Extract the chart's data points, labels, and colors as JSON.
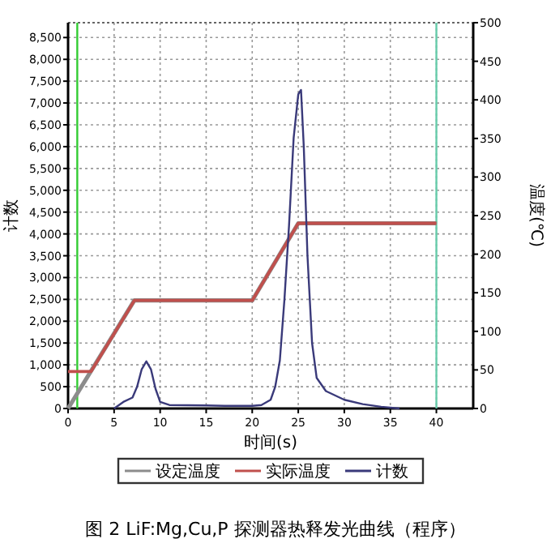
{
  "chart_data": {
    "type": "line",
    "title": "图 2 LiF:Mg,Cu,P 探测器热释发光曲线（程序）",
    "xlabel": "时间(s)",
    "ylabel": "计数",
    "y2label": "温度(℃)",
    "xlim": [
      0,
      44
    ],
    "xticks": [
      0,
      5,
      10,
      15,
      20,
      25,
      30,
      35,
      40
    ],
    "ylim": [
      0,
      8840
    ],
    "yticks": [
      0,
      {
        "value": 500,
        "label": "500"
      },
      {
        "value": 1000,
        "label": "1,000"
      },
      {
        "value": 1500,
        "label": "1,500"
      },
      {
        "value": 2000,
        "label": "2,000"
      },
      {
        "value": 2500,
        "label": "2,500"
      },
      {
        "value": 3000,
        "label": "3,000"
      },
      {
        "value": 3500,
        "label": "3,500"
      },
      {
        "value": 4000,
        "label": "4,000"
      },
      {
        "value": 4500,
        "label": "4,500"
      },
      {
        "value": 5000,
        "label": "5,000"
      },
      {
        "value": 5500,
        "label": "5,500"
      },
      {
        "value": 6000,
        "label": "6,000"
      },
      {
        "value": 6500,
        "label": "6,500"
      },
      {
        "value": 7000,
        "label": "7,000"
      },
      {
        "value": 7500,
        "label": "7,500"
      },
      {
        "value": 8000,
        "label": "8,000"
      },
      {
        "value": 8500,
        "label": "8,500"
      }
    ],
    "y2lim": [
      0,
      500
    ],
    "y2ticks": [
      0,
      50,
      100,
      150,
      200,
      250,
      300,
      350,
      400,
      450,
      500
    ],
    "grid": true,
    "legend": "bottom",
    "ref_lines": [
      {
        "axis": "x",
        "value": 1,
        "color": "#33cc33"
      },
      {
        "axis": "x",
        "value": 40,
        "color": "#66ccaa"
      }
    ],
    "series": [
      {
        "name": "设定温度",
        "color": "#8c8c8c",
        "axis": "y2",
        "x": [
          0,
          7.2,
          20,
          25,
          40
        ],
        "values": [
          0,
          140,
          140,
          240,
          240
        ]
      },
      {
        "name": "实际温度",
        "color": "#c0504d",
        "axis": "y2",
        "x": [
          0,
          2.5,
          7.2,
          20,
          25,
          40
        ],
        "values": [
          48,
          48,
          140,
          140,
          240,
          240
        ]
      },
      {
        "name": "计数",
        "color": "#3a3a7a",
        "x": [
          5,
          6,
          7,
          7.5,
          8,
          8.5,
          9,
          9.5,
          10,
          11,
          15,
          17,
          20,
          21,
          22,
          22.5,
          23,
          23.5,
          24,
          24.5,
          25,
          25.3,
          25.6,
          26,
          26.5,
          27,
          28,
          30,
          32,
          34,
          36
        ],
        "values": [
          0,
          150,
          250,
          500,
          900,
          1080,
          900,
          450,
          150,
          80,
          70,
          60,
          60,
          80,
          200,
          500,
          1100,
          2500,
          4200,
          6200,
          7200,
          7300,
          6000,
          3500,
          1500,
          700,
          400,
          200,
          100,
          40,
          0
        ]
      }
    ]
  }
}
